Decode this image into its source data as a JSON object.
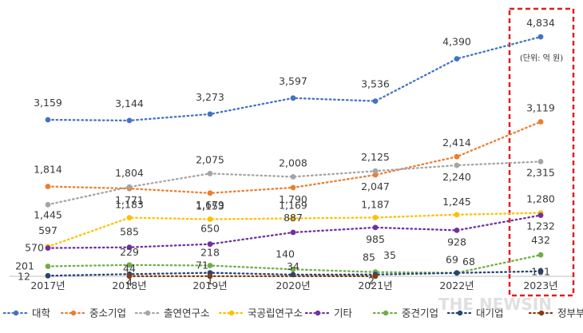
{
  "chart_data": {
    "type": "line",
    "title": "",
    "xlabel": "",
    "ylabel": "",
    "unit_note": "(단위: 억 원)",
    "categories": [
      "2017년",
      "2018년",
      "2019년",
      "2020년",
      "2021년",
      "2022년",
      "2023년"
    ],
    "grid": false,
    "legend_position": "bottom",
    "highlight_category": "2023년",
    "highlight_color": "#e0201f",
    "series": [
      {
        "name": "대학",
        "color": "#4472c4",
        "values": [
          3159,
          3144,
          3273,
          3597,
          3536,
          4390,
          4834
        ],
        "labels": [
          "3,159",
          "3,144",
          "3,273",
          "3,597",
          "3,536",
          "4,390",
          "4,834"
        ]
      },
      {
        "name": "중소기업",
        "color": "#ed7d31",
        "values": [
          1814,
          1771,
          1679,
          1790,
          2047,
          2414,
          3119
        ],
        "labels": [
          "1,814",
          "1,771",
          "1,679",
          "1,790",
          "2,047",
          "2,414",
          "3,119"
        ]
      },
      {
        "name": "출연연구소",
        "color": "#a5a5a5",
        "values": [
          1445,
          1804,
          2075,
          2008,
          2125,
          2240,
          2315
        ],
        "labels": [
          "1,445",
          "1,804",
          "2,075",
          "2,008",
          "2,125",
          "2,240",
          "2,315"
        ]
      },
      {
        "name": "국공립연구소",
        "color": "#ffc000",
        "values": [
          597,
          1183,
          1153,
          1169,
          1187,
          1245,
          1280
        ],
        "labels": [
          "597",
          "1,183",
          "1,153",
          "1,169",
          "1,187",
          "1,245",
          "1,280"
        ]
      },
      {
        "name": "기타",
        "color": "#7030a0",
        "values": [
          570,
          585,
          650,
          887,
          985,
          928,
          1232
        ],
        "labels": [
          "570",
          "585",
          "650",
          "887",
          "985",
          "928",
          "1,232"
        ]
      },
      {
        "name": "중견기업",
        "color": "#70ad47",
        "values": [
          201,
          229,
          218,
          140,
          85,
          69,
          432
        ],
        "labels": [
          "201",
          "229",
          "218",
          "140",
          "85",
          "69",
          "432"
        ]
      },
      {
        "name": "대기업",
        "color": "#264478",
        "values": [
          12,
          44,
          71,
          34,
          35,
          68,
          101
        ],
        "labels": [
          "12",
          "44",
          "71",
          "34",
          "35",
          "68",
          "101"
        ]
      },
      {
        "name": "정부부처",
        "color": "#843c0c",
        "values": [
          null,
          4,
          1,
          null,
          2,
          null,
          null
        ],
        "labels": [
          "",
          "4",
          "1",
          "",
          "2",
          "",
          ""
        ]
      }
    ]
  },
  "watermark": "THE NEWSIN"
}
